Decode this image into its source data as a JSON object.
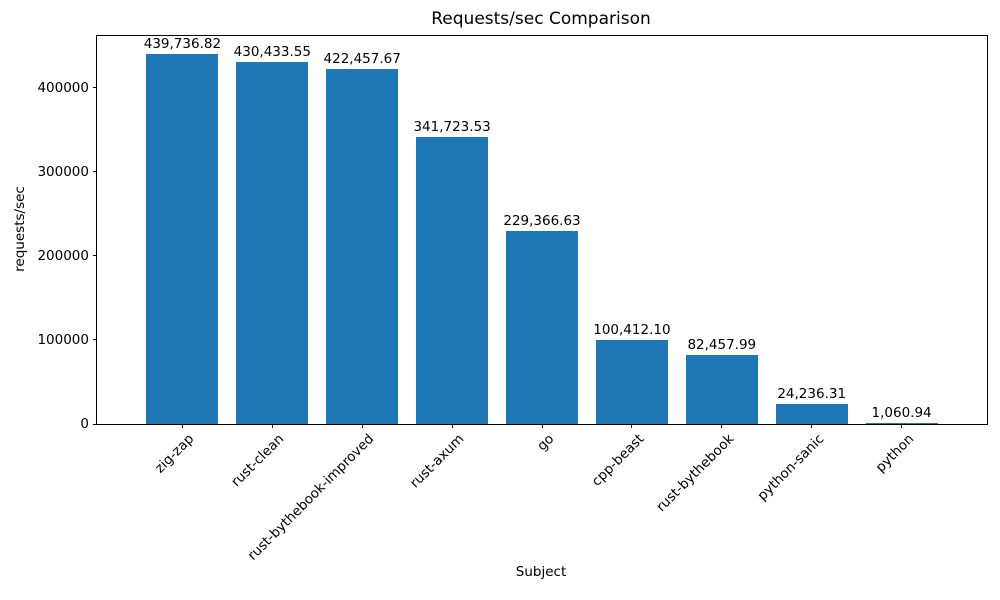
{
  "chart_data": {
    "type": "bar",
    "title": "Requests/sec Comparison",
    "xlabel": "Subject",
    "ylabel": "requests/sec",
    "categories": [
      "zig-zap",
      "rust-clean",
      "rust-bythebook-improved",
      "rust-axum",
      "go",
      "cpp-beast",
      "rust-bythebook",
      "python-sanic",
      "python"
    ],
    "values": [
      439736.82,
      430433.55,
      422457.67,
      341723.53,
      229366.63,
      100412.1,
      82457.99,
      24236.31,
      1060.94
    ],
    "value_labels": [
      "439,736.82",
      "430,433.55",
      "422,457.67",
      "341,723.53",
      "229,366.63",
      "100,412.10",
      "82,457.99",
      "24,236.31",
      "1,060.94"
    ],
    "ytick_labels": [
      "0",
      "100000",
      "200000",
      "300000",
      "400000"
    ],
    "yticks": [
      0,
      100000,
      200000,
      300000,
      400000
    ],
    "ylim": [
      0,
      461723.66
    ],
    "bar_color": "#1f77b4",
    "bar_width_fraction": 0.8,
    "x_tick_rotation": 45,
    "grid": false,
    "legend": null
  }
}
